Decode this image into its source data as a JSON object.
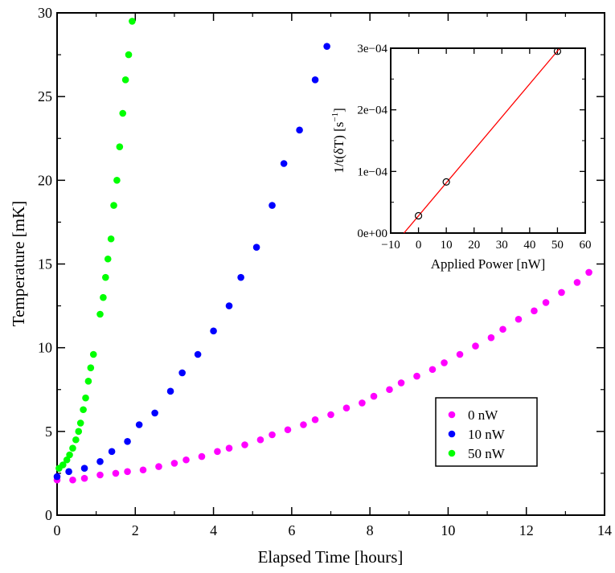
{
  "chart_data": [
    {
      "type": "scatter",
      "xlabel": "Elapsed Time [hours]",
      "ylabel": "Temperature [mK]",
      "xlim": [
        0,
        14
      ],
      "ylim": [
        0,
        30
      ],
      "x_ticks": [
        0,
        2,
        4,
        6,
        8,
        10,
        12,
        14
      ],
      "y_ticks": [
        0,
        5,
        10,
        15,
        20,
        25,
        30
      ],
      "grid": false,
      "legend_position": "bottom-right",
      "series": [
        {
          "name": "0 nW",
          "color": "#ff00ff",
          "points": [
            [
              0.0,
              2.1
            ],
            [
              0.4,
              2.1
            ],
            [
              0.7,
              2.2
            ],
            [
              1.1,
              2.4
            ],
            [
              1.5,
              2.5
            ],
            [
              1.8,
              2.6
            ],
            [
              2.2,
              2.7
            ],
            [
              2.6,
              2.9
            ],
            [
              3.0,
              3.1
            ],
            [
              3.3,
              3.3
            ],
            [
              3.7,
              3.5
            ],
            [
              4.1,
              3.8
            ],
            [
              4.4,
              4.0
            ],
            [
              4.8,
              4.2
            ],
            [
              5.2,
              4.5
            ],
            [
              5.5,
              4.8
            ],
            [
              5.9,
              5.1
            ],
            [
              6.3,
              5.4
            ],
            [
              6.6,
              5.7
            ],
            [
              7.0,
              6.0
            ],
            [
              7.4,
              6.4
            ],
            [
              7.8,
              6.7
            ],
            [
              8.1,
              7.1
            ],
            [
              8.5,
              7.5
            ],
            [
              8.8,
              7.9
            ],
            [
              9.2,
              8.3
            ],
            [
              9.6,
              8.7
            ],
            [
              9.9,
              9.1
            ],
            [
              10.3,
              9.6
            ],
            [
              10.7,
              10.1
            ],
            [
              11.1,
              10.6
            ],
            [
              11.4,
              11.1
            ],
            [
              11.8,
              11.7
            ],
            [
              12.2,
              12.2
            ],
            [
              12.5,
              12.7
            ],
            [
              12.9,
              13.3
            ],
            [
              13.3,
              13.9
            ],
            [
              13.6,
              14.5
            ]
          ]
        },
        {
          "name": "10 nW",
          "color": "#0000ff",
          "points": [
            [
              0.0,
              2.3
            ],
            [
              0.3,
              2.6
            ],
            [
              0.7,
              2.8
            ],
            [
              1.1,
              3.2
            ],
            [
              1.4,
              3.8
            ],
            [
              1.8,
              4.4
            ],
            [
              2.1,
              5.4
            ],
            [
              2.5,
              6.1
            ],
            [
              2.9,
              7.4
            ],
            [
              3.2,
              8.5
            ],
            [
              3.6,
              9.6
            ],
            [
              4.0,
              11.0
            ],
            [
              4.4,
              12.5
            ],
            [
              4.7,
              14.2
            ],
            [
              5.1,
              16.0
            ],
            [
              5.5,
              18.5
            ],
            [
              5.8,
              21.0
            ],
            [
              6.2,
              23.0
            ],
            [
              6.6,
              26.0
            ],
            [
              6.9,
              28.0
            ]
          ]
        },
        {
          "name": "50 nW",
          "color": "#00ff00",
          "points": [
            [
              0.05,
              2.8
            ],
            [
              0.15,
              3.0
            ],
            [
              0.25,
              3.3
            ],
            [
              0.32,
              3.6
            ],
            [
              0.4,
              4.0
            ],
            [
              0.48,
              4.5
            ],
            [
              0.55,
              5.0
            ],
            [
              0.6,
              5.5
            ],
            [
              0.67,
              6.3
            ],
            [
              0.73,
              7.0
            ],
            [
              0.8,
              8.0
            ],
            [
              0.86,
              8.8
            ],
            [
              0.93,
              9.6
            ],
            [
              1.1,
              12.0
            ],
            [
              1.18,
              13.0
            ],
            [
              1.24,
              14.2
            ],
            [
              1.3,
              15.3
            ],
            [
              1.38,
              16.5
            ],
            [
              1.45,
              18.5
            ],
            [
              1.53,
              20.0
            ],
            [
              1.6,
              22.0
            ],
            [
              1.68,
              24.0
            ],
            [
              1.75,
              26.0
            ],
            [
              1.83,
              27.5
            ],
            [
              1.92,
              29.5
            ]
          ]
        }
      ]
    },
    {
      "type": "scatter",
      "xlabel": "Applied Power [nW]",
      "ylabel": "1/t(δT) [s",
      "ylabel_superscript": "−1",
      "ylabel_suffix": "]",
      "xlim": [
        -10,
        60
      ],
      "ylim": [
        0,
        0.0003
      ],
      "x_ticks": [
        "−10",
        "0",
        "10",
        "20",
        "30",
        "40",
        "50",
        "60"
      ],
      "x_tick_values": [
        -10,
        0,
        10,
        20,
        30,
        40,
        50,
        60
      ],
      "y_ticks": [
        "0e+00",
        "1e−04",
        "2e−04",
        "3e−04"
      ],
      "y_tick_values": [
        0,
        0.0001,
        0.0002,
        0.0003
      ],
      "grid": false,
      "series": [
        {
          "marker": "open-circle",
          "color": "#000000",
          "points": [
            [
              0,
              2.8e-05
            ],
            [
              10,
              8.3e-05
            ],
            [
              50,
              0.000295
            ]
          ]
        }
      ],
      "fit_line": {
        "color": "#ff0000",
        "slope": 5.35e-06,
        "intercept": 2.8e-05
      }
    }
  ]
}
